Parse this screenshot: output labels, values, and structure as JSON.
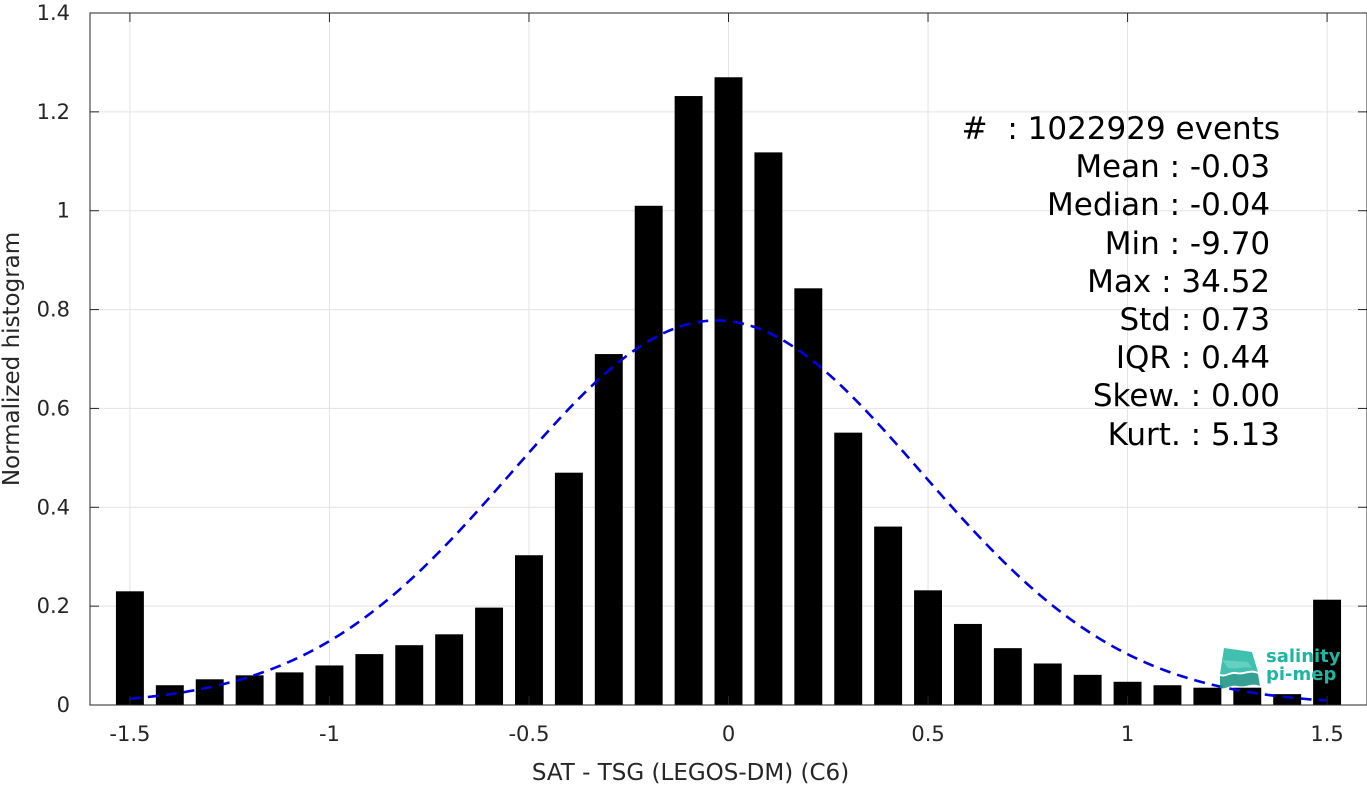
{
  "chart_data": {
    "type": "bar",
    "xlabel": "SAT - TSG (LEGOS-DM) (C6)",
    "ylabel": "Normalized histogram",
    "xlim": [
      -1.6,
      1.6
    ],
    "ylim": [
      0,
      1.4
    ],
    "xticks": [
      -1.5,
      -1,
      -0.5,
      0,
      0.5,
      1,
      1.5
    ],
    "xtick_labels": [
      "-1.5",
      "-1",
      "-0.5",
      "0",
      "0.5",
      "1",
      "1.5"
    ],
    "yticks": [
      0,
      0.2,
      0.4,
      0.6,
      0.8,
      1,
      1.2,
      1.4
    ],
    "ytick_labels": [
      "0",
      "0.2",
      "0.4",
      "0.6",
      "0.8",
      "1",
      "1.2",
      "1.4"
    ],
    "grid": true,
    "bar_color": "#000000",
    "x": [
      -1.5,
      -1.4,
      -1.3,
      -1.2,
      -1.1,
      -1.0,
      -0.9,
      -0.8,
      -0.7,
      -0.6,
      -0.5,
      -0.4,
      -0.3,
      -0.2,
      -0.1,
      0.0,
      0.1,
      0.2,
      0.3,
      0.4,
      0.5,
      0.6,
      0.7,
      0.8,
      0.9,
      1.0,
      1.1,
      1.2,
      1.3,
      1.4,
      1.5
    ],
    "values": [
      0.23,
      0.04,
      0.052,
      0.06,
      0.066,
      0.08,
      0.103,
      0.121,
      0.143,
      0.197,
      0.303,
      0.47,
      0.71,
      1.01,
      1.232,
      1.27,
      1.118,
      0.843,
      0.551,
      0.361,
      0.232,
      0.164,
      0.115,
      0.084,
      0.061,
      0.047,
      0.04,
      0.035,
      0.035,
      0.022,
      0.213
    ],
    "gaussian_fit": {
      "color": "#0000e0",
      "style": "dashed",
      "mean": -0.03,
      "std": 0.512,
      "peak": 0.778,
      "x_range": [
        -1.5,
        1.5
      ]
    }
  },
  "stats": [
    "#  : 1022929 events",
    "Mean : -0.03 ",
    "Median : -0.04 ",
    "Min : -9.70 ",
    "Max : 34.52 ",
    "Std : 0.73 ",
    "IQR : 0.44 ",
    "Skew. : 0.00",
    "Kurt. : 5.13"
  ],
  "logo": {
    "line1": "salinity",
    "line2": "pi-mep",
    "color": "#1fb5a0"
  }
}
